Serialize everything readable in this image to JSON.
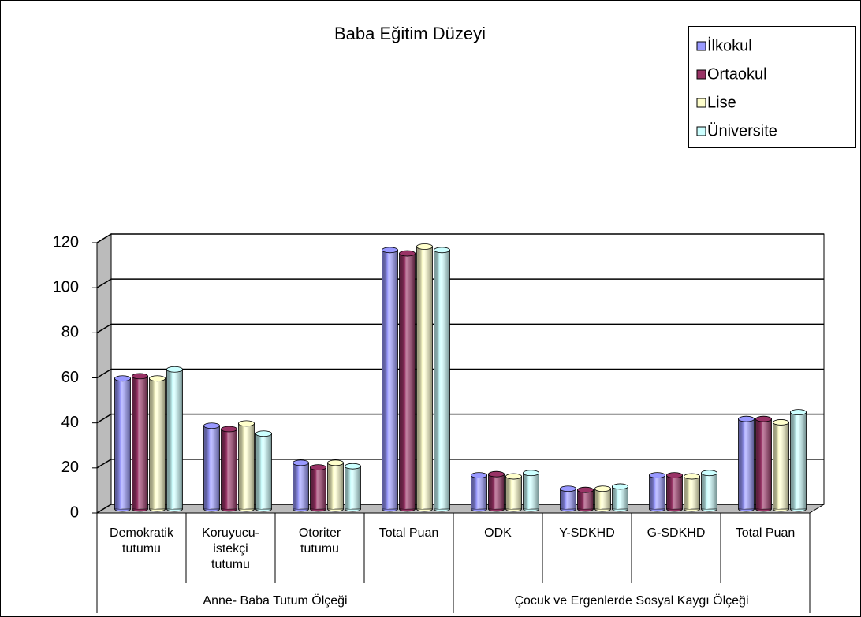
{
  "chart_data": {
    "type": "bar",
    "title": "Baba Eğitim Düzeyi",
    "groups": [
      {
        "name": "Anne- Baba Tutum Ölçeği",
        "categories": [
          [
            "Demokratik",
            "tutumu"
          ],
          [
            "Koruyucu-",
            "istekçi",
            "tutumu"
          ],
          [
            "Otoriter",
            "tutumu"
          ],
          [
            "Total Puan"
          ]
        ]
      },
      {
        "name": "Çocuk ve Ergenlerde Sosyal Kaygı Ölçeği",
        "categories": [
          [
            "ODK"
          ],
          [
            "Y-SDKHD"
          ],
          [
            "G-SDKHD"
          ],
          [
            "Total Puan"
          ]
        ]
      }
    ],
    "series": [
      {
        "name": "İlkokul",
        "color": "#9999ff",
        "values": [
          58,
          37,
          20.5,
          115,
          15,
          9,
          15,
          40
        ]
      },
      {
        "name": "Ortaokul",
        "color": "#993366",
        "values": [
          59,
          35.5,
          18.5,
          113.5,
          15.5,
          8.5,
          15,
          40
        ]
      },
      {
        "name": "Lise",
        "color": "#ffffcc",
        "values": [
          58,
          38,
          20.5,
          116.5,
          14.5,
          9,
          14.5,
          38.5
        ]
      },
      {
        "name": "Üniversite",
        "color": "#ccffff",
        "values": [
          62,
          33.5,
          19,
          115,
          16,
          10,
          16,
          43
        ]
      }
    ],
    "ylim": [
      0,
      120
    ],
    "yticks": [
      0,
      20,
      40,
      60,
      80,
      100,
      120
    ],
    "grid": true,
    "legend": "top-right"
  }
}
